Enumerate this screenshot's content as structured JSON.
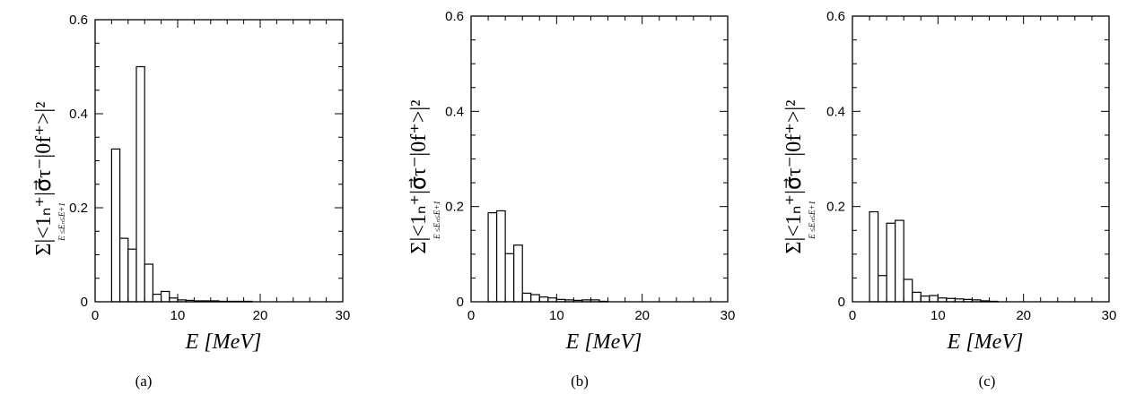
{
  "charts": [
    {
      "caption": "(a)",
      "chart_data": {
        "type": "bar",
        "bin_width": 1,
        "x": [
          2,
          3,
          4,
          5,
          6,
          7,
          8,
          9,
          10,
          11,
          12,
          13,
          14,
          15,
          16,
          17,
          18
        ],
        "values": [
          0.325,
          0.135,
          0.112,
          0.5,
          0.08,
          0.016,
          0.022,
          0.008,
          0.004,
          0.003,
          0.002,
          0.002,
          0.002,
          0.001,
          0.001,
          0.001,
          0.001
        ],
        "xlim": [
          0,
          30
        ],
        "ylim": [
          0,
          0.6
        ],
        "xticks": [
          "0",
          "10",
          "20",
          "30"
        ],
        "yticks": [
          "0",
          "0.2",
          "0.4",
          "0.6"
        ],
        "xlabel": "E  [MeV]",
        "ylabel": "Σ|<1ₙ⁺|σ⃗τ⁻|0f⁺>|²",
        "ylabel_sub": "E ≤Eₙ≤E+1",
        "grid": false
      }
    },
    {
      "caption": "(b)",
      "chart_data": {
        "type": "bar",
        "bin_width": 1,
        "x": [
          2,
          3,
          4,
          5,
          6,
          7,
          8,
          9,
          10,
          11,
          12,
          13,
          14,
          15
        ],
        "values": [
          0.187,
          0.191,
          0.101,
          0.119,
          0.018,
          0.015,
          0.01,
          0.008,
          0.005,
          0.004,
          0.003,
          0.004,
          0.004,
          0.001
        ],
        "xlim": [
          0,
          30
        ],
        "ylim": [
          0,
          0.6
        ],
        "xticks": [
          "0",
          "10",
          "20",
          "30"
        ],
        "yticks": [
          "0",
          "0.2",
          "0.4",
          "0.6"
        ],
        "xlabel": "E  [MeV]",
        "ylabel": "Σ|<1ₙ⁺|σ⃗τ⁻|0f⁺>|²",
        "ylabel_sub": "E ≤Eₙ≤E+1",
        "grid": false
      }
    },
    {
      "caption": "(c)",
      "chart_data": {
        "type": "bar",
        "bin_width": 1,
        "x": [
          2,
          3,
          4,
          5,
          6,
          7,
          8,
          9,
          10,
          11,
          12,
          13,
          14,
          15,
          16
        ],
        "values": [
          0.189,
          0.055,
          0.165,
          0.171,
          0.047,
          0.02,
          0.012,
          0.013,
          0.008,
          0.007,
          0.006,
          0.005,
          0.004,
          0.002,
          0.001
        ],
        "xlim": [
          0,
          30
        ],
        "ylim": [
          0,
          0.6
        ],
        "xticks": [
          "0",
          "10",
          "20",
          "30"
        ],
        "yticks": [
          "0",
          "0.2",
          "0.4",
          "0.6"
        ],
        "xlabel": "E  [MeV]",
        "ylabel": "Σ|<1ₙ⁺|σ⃗τ⁻|0f⁺>|²",
        "ylabel_sub": "E ≤Eₙ≤E+1",
        "grid": false
      }
    }
  ]
}
